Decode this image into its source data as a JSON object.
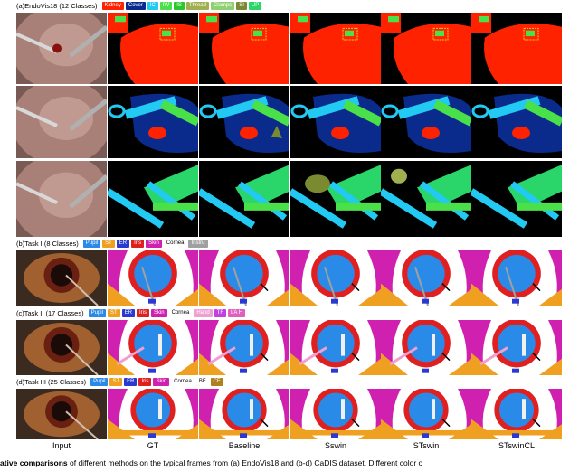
{
  "sections": [
    {
      "title": "(a)EndoVis18 (12 Classes)",
      "labels": [
        {
          "text": "Kidney",
          "color": "#ff2200"
        },
        {
          "text": "Cover",
          "color": "#0a2a8c"
        },
        {
          "text": "IC",
          "color": "#22c9f2"
        },
        {
          "text": "IW",
          "color": "#49e049"
        },
        {
          "text": "IS",
          "color": "#28c828"
        },
        {
          "text": "Thread",
          "color": "#a0b050"
        },
        {
          "text": "Clamps",
          "color": "#8fd070"
        },
        {
          "text": "SI",
          "color": "#7a8a30"
        },
        {
          "text": "UP",
          "color": "#2ad66a"
        }
      ]
    },
    {
      "title": "(b)Task I (8 Classes)",
      "labels": [
        {
          "text": "Pupil",
          "color": "#2a8ae8"
        },
        {
          "text": "ST",
          "color": "#f0a020"
        },
        {
          "text": "ER",
          "color": "#2a3ad0"
        },
        {
          "text": "Iris",
          "color": "#e02020"
        },
        {
          "text": "Skin",
          "color": "#d020b0"
        },
        {
          "text": "Cornea",
          "color": "#ffffff"
        },
        {
          "text": "Instru",
          "color": "#a0a0a0"
        }
      ]
    },
    {
      "title": "(c)Task II (17 Classes)",
      "labels": [
        {
          "text": "Pupil",
          "color": "#2a8ae8"
        },
        {
          "text": "ST",
          "color": "#f0a020"
        },
        {
          "text": "ER",
          "color": "#2a3ad0"
        },
        {
          "text": "Iris",
          "color": "#e02020"
        },
        {
          "text": "Skin",
          "color": "#d020b0"
        },
        {
          "text": "Cornea",
          "color": "#ffffff"
        },
        {
          "text": "Hand",
          "color": "#f0a0d0"
        },
        {
          "text": "TF",
          "color": "#c040e0"
        },
        {
          "text": "I/A H",
          "color": "#e060c0"
        }
      ]
    },
    {
      "title": "(d)Task III (25 Classes)",
      "labels": [
        {
          "text": "Pupil",
          "color": "#2a8ae8"
        },
        {
          "text": "ST",
          "color": "#f0a020"
        },
        {
          "text": "ER",
          "color": "#2a3ad0"
        },
        {
          "text": "Iris",
          "color": "#e02020"
        },
        {
          "text": "Skin",
          "color": "#d020b0"
        },
        {
          "text": "Cornea",
          "color": "#ffffff"
        },
        {
          "text": "BF",
          "color": "#ffffff"
        },
        {
          "text": "CF",
          "color": "#b08020"
        }
      ]
    }
  ],
  "columns": [
    "Input",
    "GT",
    "Baseline",
    "Sswin",
    "STswin",
    "STswinCL"
  ],
  "caption": {
    "bold": "ative comparisons",
    "rest": " of different methods on the typical frames from (a) EndoVis18 and (b-d) CaDIS dataset. Different color o"
  }
}
